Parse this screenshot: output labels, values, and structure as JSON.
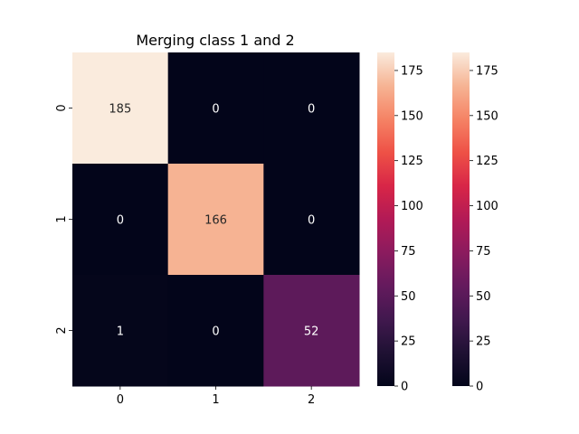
{
  "chart_data": {
    "type": "heatmap",
    "title": "Merging class 1 and 2",
    "xlabel": "",
    "ylabel": "",
    "x_tick_labels": [
      "0",
      "1",
      "2"
    ],
    "y_tick_labels": [
      "0",
      "1",
      "2"
    ],
    "values": [
      [
        185,
        0,
        0
      ],
      [
        0,
        166,
        0
      ],
      [
        1,
        0,
        52
      ]
    ],
    "colormap": "rocket",
    "vmin": 0,
    "vmax": 185,
    "colorbars": [
      {
        "ticks": [
          0,
          25,
          50,
          75,
          100,
          125,
          150,
          175
        ]
      },
      {
        "ticks": [
          0,
          25,
          50,
          75,
          100,
          125,
          150,
          175
        ]
      }
    ],
    "annot_color_dark": "#262626",
    "annot_color_light": "#ffffff"
  }
}
